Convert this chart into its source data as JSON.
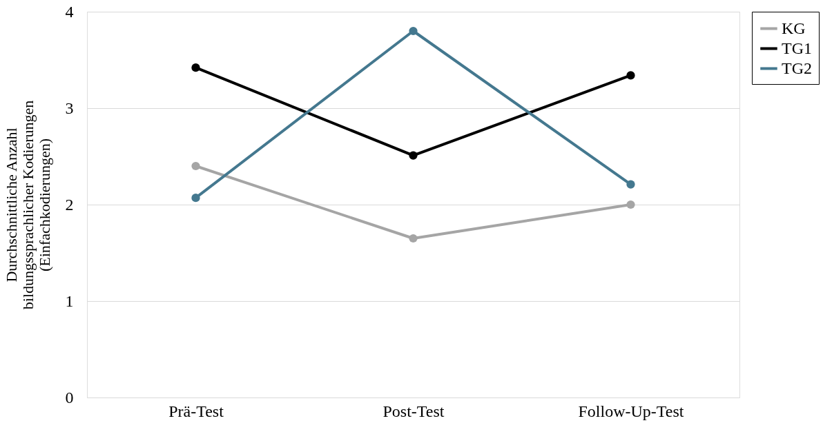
{
  "chart_data": {
    "type": "line",
    "ylabel": "Durchschnittliche Anzahl\nbildungssprachlicher Kodierungen\n(Einfachkodierungen)",
    "categories": [
      "Prä-Test",
      "Post-Test",
      "Follow-Up-Test"
    ],
    "series": [
      {
        "name": "KG",
        "color": "#a5a5a5",
        "values": [
          2.4,
          1.65,
          2.0
        ]
      },
      {
        "name": "TG1",
        "color": "#000000",
        "values": [
          3.42,
          2.51,
          3.34
        ]
      },
      {
        "name": "TG2",
        "color": "#44788f",
        "values": [
          2.07,
          3.8,
          2.21
        ]
      }
    ],
    "ylim": [
      0,
      4
    ],
    "yticks": [
      0,
      1,
      2,
      3,
      4
    ],
    "grid": "y",
    "legend": "right",
    "marker": "circle",
    "line_style": "solid"
  }
}
